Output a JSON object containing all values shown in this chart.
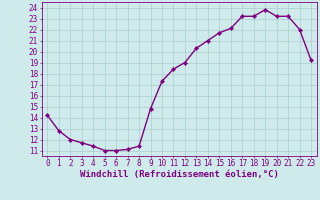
{
  "x": [
    0,
    1,
    2,
    3,
    4,
    5,
    6,
    7,
    8,
    9,
    10,
    11,
    12,
    13,
    14,
    15,
    16,
    17,
    18,
    19,
    20,
    21,
    22,
    23
  ],
  "y": [
    14.2,
    12.8,
    12.0,
    11.7,
    11.4,
    11.0,
    11.0,
    11.1,
    11.4,
    14.8,
    17.3,
    18.4,
    19.0,
    20.3,
    21.0,
    21.7,
    22.1,
    23.2,
    23.2,
    23.8,
    23.2,
    23.2,
    22.0,
    19.2
  ],
  "line_color": "#800080",
  "marker": "D",
  "markersize": 2.2,
  "linewidth": 1.0,
  "bg_color": "#ceeaea",
  "grid_color": "#aacece",
  "xlabel": "Windchill (Refroidissement éolien,°C)",
  "xlabel_fontsize": 6.5,
  "ylabel_ticks": [
    11,
    12,
    13,
    14,
    15,
    16,
    17,
    18,
    19,
    20,
    21,
    22,
    23,
    24
  ],
  "xlim": [
    -0.5,
    23.5
  ],
  "ylim": [
    10.5,
    24.5
  ],
  "tick_fontsize": 5.5,
  "tick_color": "#800080",
  "axis_color": "#800080"
}
